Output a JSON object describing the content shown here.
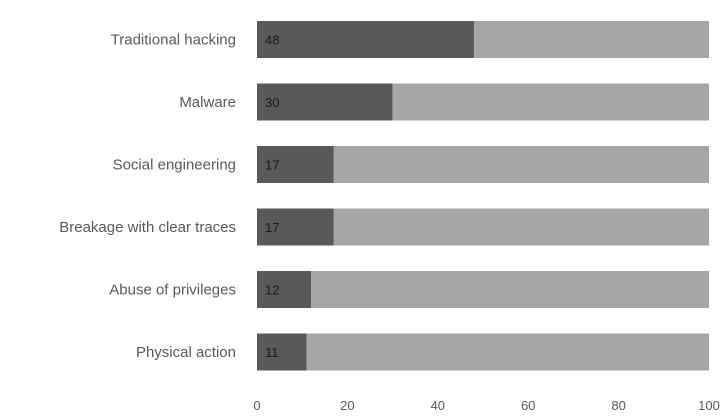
{
  "chart_data": {
    "type": "bar",
    "orientation": "horizontal",
    "stacked": true,
    "categories": [
      "Traditional hacking",
      "Malware",
      "Social engineering",
      "Breakage with clear traces",
      "Abuse of privileges",
      "Physical action"
    ],
    "series": [
      {
        "values": [
          48,
          30,
          17,
          17,
          12,
          11
        ]
      },
      {
        "values": [
          52,
          70,
          83,
          83,
          88,
          89
        ]
      }
    ],
    "data_labels": [
      "48",
      "30",
      "17",
      "17",
      "12",
      "11"
    ],
    "xlim": [
      0,
      100
    ],
    "xticks": [
      "0",
      "20",
      "40",
      "60",
      "80",
      "100"
    ],
    "grid": false,
    "legend": "none",
    "colors": {
      "primary": "#595959",
      "remainder": "#a6a6a6",
      "label_text": "#595959"
    }
  }
}
